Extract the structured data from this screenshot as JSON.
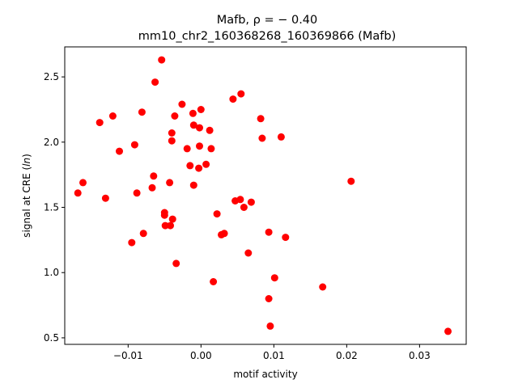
{
  "chart_data": {
    "type": "scatter",
    "title_line1": "Mafb, ρ = − 0.40",
    "title_line2": "mm10_chr2_160368268_160369866 (Mafb)",
    "xlabel": "motif activity",
    "ylabel_prefix": "signal at CRE (",
    "ylabel_italic": "ln",
    "ylabel_suffix": ")",
    "xlim": [
      -0.0187,
      0.0364
    ],
    "ylim": [
      0.45,
      2.73
    ],
    "x_ticks": [
      {
        "value": -0.01,
        "label": "−0.01"
      },
      {
        "value": 0.0,
        "label": "0.00"
      },
      {
        "value": 0.01,
        "label": "0.01"
      },
      {
        "value": 0.02,
        "label": "0.02"
      },
      {
        "value": 0.03,
        "label": "0.03"
      }
    ],
    "y_ticks": [
      {
        "value": 0.5,
        "label": "0.5"
      },
      {
        "value": 1.0,
        "label": "1.0"
      },
      {
        "value": 1.5,
        "label": "1.5"
      },
      {
        "value": 2.0,
        "label": "2.0"
      },
      {
        "value": 2.5,
        "label": "2.5"
      }
    ],
    "grid": false,
    "marker_color": "#ff0000",
    "points": [
      {
        "x": -0.0054,
        "y": 2.63
      },
      {
        "x": -0.0063,
        "y": 2.46
      },
      {
        "x": 0.0055,
        "y": 2.37
      },
      {
        "x": 0.0044,
        "y": 2.33
      },
      {
        "x": -0.0026,
        "y": 2.29
      },
      {
        "x": 0.0,
        "y": 2.25
      },
      {
        "x": -0.0081,
        "y": 2.23
      },
      {
        "x": -0.0011,
        "y": 2.22
      },
      {
        "x": -0.0036,
        "y": 2.2
      },
      {
        "x": -0.0121,
        "y": 2.2
      },
      {
        "x": 0.0082,
        "y": 2.18
      },
      {
        "x": -0.0139,
        "y": 2.15
      },
      {
        "x": -0.001,
        "y": 2.13
      },
      {
        "x": -0.0002,
        "y": 2.11
      },
      {
        "x": 0.0012,
        "y": 2.09
      },
      {
        "x": -0.004,
        "y": 2.07
      },
      {
        "x": 0.011,
        "y": 2.04
      },
      {
        "x": 0.0084,
        "y": 2.03
      },
      {
        "x": -0.004,
        "y": 2.01
      },
      {
        "x": -0.0091,
        "y": 1.98
      },
      {
        "x": -0.0002,
        "y": 1.97
      },
      {
        "x": -0.0019,
        "y": 1.95
      },
      {
        "x": 0.0014,
        "y": 1.95
      },
      {
        "x": -0.0112,
        "y": 1.93
      },
      {
        "x": 0.0007,
        "y": 1.83
      },
      {
        "x": -0.0015,
        "y": 1.82
      },
      {
        "x": -0.0003,
        "y": 1.8
      },
      {
        "x": -0.0065,
        "y": 1.74
      },
      {
        "x": 0.0206,
        "y": 1.7
      },
      {
        "x": -0.0043,
        "y": 1.69
      },
      {
        "x": -0.0162,
        "y": 1.69
      },
      {
        "x": -0.001,
        "y": 1.67
      },
      {
        "x": -0.0067,
        "y": 1.65
      },
      {
        "x": -0.0169,
        "y": 1.61
      },
      {
        "x": -0.0088,
        "y": 1.61
      },
      {
        "x": -0.0131,
        "y": 1.57
      },
      {
        "x": 0.0054,
        "y": 1.56
      },
      {
        "x": 0.0047,
        "y": 1.55
      },
      {
        "x": 0.0069,
        "y": 1.54
      },
      {
        "x": 0.0059,
        "y": 1.5
      },
      {
        "x": -0.005,
        "y": 1.46
      },
      {
        "x": -0.005,
        "y": 1.44
      },
      {
        "x": 0.0022,
        "y": 1.45
      },
      {
        "x": -0.0039,
        "y": 1.41
      },
      {
        "x": -0.0049,
        "y": 1.36
      },
      {
        "x": -0.0042,
        "y": 1.36
      },
      {
        "x": 0.0093,
        "y": 1.31
      },
      {
        "x": 0.0032,
        "y": 1.3
      },
      {
        "x": 0.0028,
        "y": 1.29
      },
      {
        "x": -0.0079,
        "y": 1.3
      },
      {
        "x": 0.0116,
        "y": 1.27
      },
      {
        "x": -0.0095,
        "y": 1.23
      },
      {
        "x": 0.0065,
        "y": 1.15
      },
      {
        "x": -0.0034,
        "y": 1.07
      },
      {
        "x": 0.0101,
        "y": 0.96
      },
      {
        "x": 0.0017,
        "y": 0.93
      },
      {
        "x": 0.0167,
        "y": 0.89
      },
      {
        "x": 0.0093,
        "y": 0.8
      },
      {
        "x": 0.0095,
        "y": 0.59
      },
      {
        "x": 0.0339,
        "y": 0.55
      }
    ]
  }
}
